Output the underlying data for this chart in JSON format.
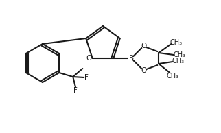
{
  "bg_color": "#ffffff",
  "line_color": "#1a1a1a",
  "line_width": 1.5,
  "font_size": 7.5,
  "bond_color": "#1a1a1a",
  "label_color": "#1a1a1a"
}
